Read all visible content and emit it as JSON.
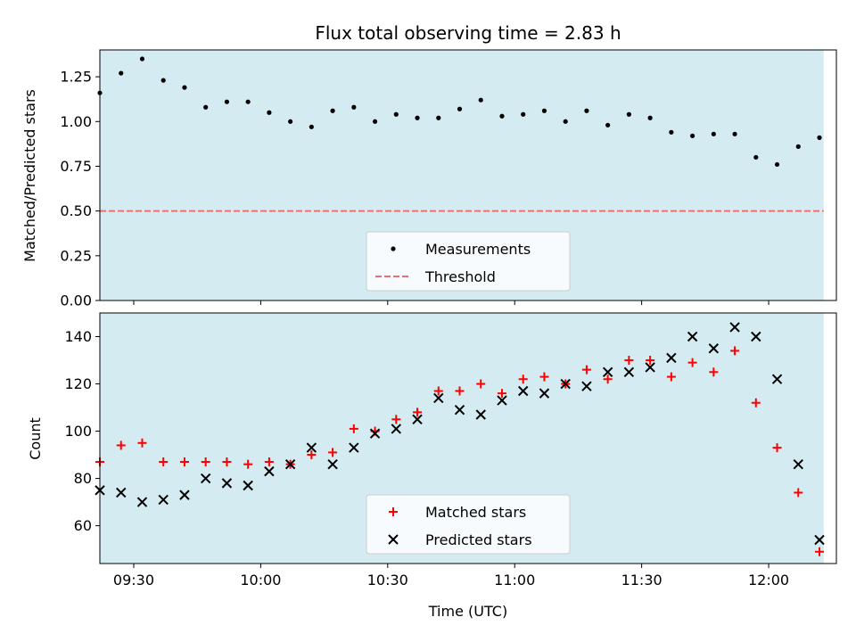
{
  "chart_data": [
    {
      "type": "scatter",
      "title": "Flux total observing time = 2.83 h",
      "xlabel": "",
      "ylabel": "Matched/Predicted stars",
      "ylim": [
        0,
        1.4
      ],
      "yticks": [
        "0.00",
        "0.25",
        "0.50",
        "0.75",
        "1.00",
        "1.25"
      ],
      "ytick_values": [
        0,
        0.25,
        0.5,
        0.75,
        1.0,
        1.25
      ],
      "xlim": [
        "09:22",
        "12:16"
      ],
      "xticks": [
        "09:30",
        "10:00",
        "10:30",
        "11:00",
        "11:30",
        "12:00"
      ],
      "xtick_labels_shown": false,
      "shaded_span": [
        "09:22",
        "12:13"
      ],
      "shaded_color": "#add8e6",
      "threshold": 0.5,
      "threshold_color": "#ef6f6f",
      "legend": {
        "position": "lower center",
        "entries": [
          {
            "label": "Measurements",
            "marker": "dot",
            "color": "#000000"
          },
          {
            "label": "Threshold",
            "marker": "dashed-line",
            "color": "#ef6f6f"
          }
        ]
      },
      "series": [
        {
          "name": "Measurements",
          "color": "#000000",
          "marker": "dot",
          "x": [
            "09:22",
            "09:27",
            "09:32",
            "09:37",
            "09:42",
            "09:47",
            "09:52",
            "09:57",
            "10:02",
            "10:07",
            "10:12",
            "10:17",
            "10:22",
            "10:27",
            "10:32",
            "10:37",
            "10:42",
            "10:47",
            "10:52",
            "10:57",
            "11:02",
            "11:07",
            "11:12",
            "11:17",
            "11:22",
            "11:27",
            "11:32",
            "11:37",
            "11:42",
            "11:47",
            "11:52",
            "11:57",
            "12:02",
            "12:07",
            "12:12"
          ],
          "values": [
            1.16,
            1.27,
            1.35,
            1.23,
            1.19,
            1.08,
            1.11,
            1.11,
            1.05,
            1.0,
            0.97,
            1.06,
            1.08,
            1.0,
            1.04,
            1.02,
            1.02,
            1.07,
            1.12,
            1.03,
            1.04,
            1.06,
            1.0,
            1.06,
            0.98,
            1.04,
            1.02,
            0.94,
            0.92,
            0.93,
            0.93,
            0.8,
            0.76,
            0.86,
            0.91
          ]
        }
      ]
    },
    {
      "type": "scatter",
      "title": "",
      "xlabel": "Time (UTC)",
      "ylabel": "Count",
      "ylim": [
        44,
        150
      ],
      "yticks": [
        "60",
        "80",
        "100",
        "120",
        "140"
      ],
      "ytick_values": [
        60,
        80,
        100,
        120,
        140
      ],
      "xlim": [
        "09:22",
        "12:16"
      ],
      "xticks": [
        "09:30",
        "10:00",
        "10:30",
        "11:00",
        "11:30",
        "12:00"
      ],
      "xtick_labels_shown": true,
      "shaded_span": [
        "09:22",
        "12:13"
      ],
      "shaded_color": "#add8e6",
      "legend": {
        "position": "lower center",
        "entries": [
          {
            "label": "Matched stars",
            "marker": "plus",
            "color": "#ff0000"
          },
          {
            "label": "Predicted stars",
            "marker": "x",
            "color": "#000000"
          }
        ]
      },
      "series": [
        {
          "name": "Matched stars",
          "color": "#ff0000",
          "marker": "plus",
          "x": [
            "09:22",
            "09:27",
            "09:32",
            "09:37",
            "09:42",
            "09:47",
            "09:52",
            "09:57",
            "10:02",
            "10:07",
            "10:12",
            "10:17",
            "10:22",
            "10:27",
            "10:32",
            "10:37",
            "10:42",
            "10:47",
            "10:52",
            "10:57",
            "11:02",
            "11:07",
            "11:12",
            "11:17",
            "11:22",
            "11:27",
            "11:32",
            "11:37",
            "11:42",
            "11:47",
            "11:52",
            "11:57",
            "12:02",
            "12:07",
            "12:12"
          ],
          "values": [
            87,
            94,
            95,
            87,
            87,
            87,
            87,
            86,
            87,
            86,
            90,
            91,
            101,
            100,
            105,
            108,
            117,
            117,
            120,
            116,
            122,
            123,
            120,
            126,
            122,
            130,
            130,
            123,
            129,
            125,
            134,
            112,
            93,
            74,
            49
          ]
        },
        {
          "name": "Predicted stars",
          "color": "#000000",
          "marker": "x",
          "x": [
            "09:22",
            "09:27",
            "09:32",
            "09:37",
            "09:42",
            "09:47",
            "09:52",
            "09:57",
            "10:02",
            "10:07",
            "10:12",
            "10:17",
            "10:22",
            "10:27",
            "10:32",
            "10:37",
            "10:42",
            "10:47",
            "10:52",
            "10:57",
            "11:02",
            "11:07",
            "11:12",
            "11:17",
            "11:22",
            "11:27",
            "11:32",
            "11:37",
            "11:42",
            "11:47",
            "11:52",
            "11:57",
            "12:02",
            "12:07",
            "12:12"
          ],
          "values": [
            75,
            74,
            70,
            71,
            73,
            80,
            78,
            77,
            83,
            86,
            93,
            86,
            93,
            99,
            101,
            105,
            114,
            109,
            107,
            113,
            117,
            116,
            120,
            119,
            125,
            125,
            127,
            131,
            140,
            135,
            144,
            140,
            122,
            86,
            54
          ]
        }
      ]
    }
  ]
}
